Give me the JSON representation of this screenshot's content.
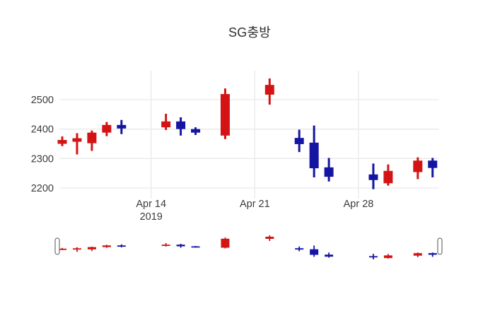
{
  "chart_data": {
    "type": "candlestick",
    "title": "SG충방",
    "increasing_color": "#d41414",
    "decreasing_color": "#1515a3",
    "grid_color": "#e9e9e9",
    "tick_color": "#3b3b3b",
    "legend": "none",
    "rangeslider": true,
    "ylim": [
      2150,
      2600
    ],
    "yticks": [
      2500,
      2400,
      2300,
      2200
    ],
    "xticks": [
      {
        "date": "2019-04-14",
        "line1": "Apr 14",
        "line2": "2019"
      },
      {
        "date": "2019-04-21",
        "line1": "Apr 21",
        "line2": ""
      },
      {
        "date": "2019-04-28",
        "line1": "Apr 28",
        "line2": ""
      }
    ],
    "candles": [
      {
        "date": "2019-04-08",
        "open": 2350,
        "high": 2375,
        "low": 2342,
        "close": 2363
      },
      {
        "date": "2019-04-09",
        "open": 2357,
        "high": 2386,
        "low": 2314,
        "close": 2369
      },
      {
        "date": "2019-04-10",
        "open": 2352,
        "high": 2395,
        "low": 2326,
        "close": 2388
      },
      {
        "date": "2019-04-11",
        "open": 2388,
        "high": 2424,
        "low": 2376,
        "close": 2414
      },
      {
        "date": "2019-04-12",
        "open": 2414,
        "high": 2431,
        "low": 2383,
        "close": 2402
      },
      {
        "date": "2019-04-15",
        "open": 2406,
        "high": 2452,
        "low": 2397,
        "close": 2426
      },
      {
        "date": "2019-04-16",
        "open": 2426,
        "high": 2440,
        "low": 2378,
        "close": 2400
      },
      {
        "date": "2019-04-17",
        "open": 2400,
        "high": 2406,
        "low": 2380,
        "close": 2388
      },
      {
        "date": "2019-04-19",
        "open": 2378,
        "high": 2538,
        "low": 2366,
        "close": 2519
      },
      {
        "date": "2019-04-22",
        "open": 2517,
        "high": 2572,
        "low": 2483,
        "close": 2550
      },
      {
        "date": "2019-04-24",
        "open": 2370,
        "high": 2398,
        "low": 2322,
        "close": 2349
      },
      {
        "date": "2019-04-25",
        "open": 2354,
        "high": 2412,
        "low": 2236,
        "close": 2267
      },
      {
        "date": "2019-04-26",
        "open": 2270,
        "high": 2302,
        "low": 2222,
        "close": 2238
      },
      {
        "date": "2019-04-29",
        "open": 2246,
        "high": 2283,
        "low": 2196,
        "close": 2227
      },
      {
        "date": "2019-04-30",
        "open": 2216,
        "high": 2280,
        "low": 2208,
        "close": 2258
      },
      {
        "date": "2019-05-02",
        "open": 2254,
        "high": 2304,
        "low": 2230,
        "close": 2293
      },
      {
        "date": "2019-05-03",
        "open": 2293,
        "high": 2302,
        "low": 2236,
        "close": 2268
      }
    ]
  }
}
